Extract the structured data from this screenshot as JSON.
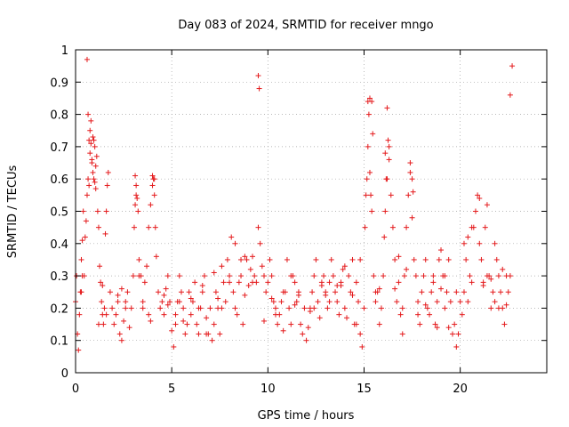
{
  "chart_data": {
    "type": "scatter",
    "title": "Day 083 of 2024, SRMTID for receiver mngo",
    "xlabel": "GPS time / hours",
    "ylabel": "SRMTID / TECUs",
    "xlim": [
      0,
      24.5
    ],
    "ylim": [
      0,
      1
    ],
    "xticks": [
      0,
      5,
      10,
      15,
      20
    ],
    "xtick_labels": [
      "0",
      "5",
      "10",
      "15",
      "20"
    ],
    "yticks": [
      0,
      0.1,
      0.2,
      0.3,
      0.4,
      0.5,
      0.6,
      0.7,
      0.8,
      0.9,
      1
    ],
    "ytick_labels": [
      "0",
      "0.1",
      "0.2",
      "0.3",
      "0.4",
      "0.5",
      "0.6",
      "0.7",
      "0.8",
      "0.9",
      "1"
    ],
    "grid": true,
    "marker": "+",
    "color": "#e41a1c",
    "series": [
      {
        "name": "SRMTID",
        "x": [
          0.0,
          0.05,
          0.1,
          0.15,
          0.2,
          0.25,
          0.3,
          0.35,
          0.4,
          0.45,
          0.5,
          0.55,
          0.6,
          0.65,
          0.7,
          0.75,
          0.8,
          0.85,
          0.9,
          0.95,
          1.0,
          1.05,
          1.1,
          1.15,
          1.2,
          1.25,
          1.3,
          1.35,
          1.4,
          1.45,
          1.5,
          1.55,
          1.6,
          1.65,
          1.7,
          1.8,
          1.9,
          2.0,
          2.1,
          2.2,
          2.3,
          2.4,
          2.5,
          2.6,
          2.7,
          2.8,
          2.9,
          3.0,
          3.05,
          3.1,
          3.15,
          3.2,
          3.25,
          3.3,
          3.4,
          3.5,
          3.6,
          3.7,
          3.8,
          3.9,
          4.0,
          4.05,
          4.1,
          4.15,
          4.2,
          4.3,
          4.4,
          4.5,
          4.6,
          4.7,
          4.8,
          4.9,
          5.0,
          5.1,
          5.2,
          5.3,
          5.4,
          5.5,
          5.6,
          5.7,
          5.8,
          5.9,
          6.0,
          6.1,
          6.2,
          6.3,
          6.4,
          6.5,
          6.6,
          6.7,
          6.8,
          6.9,
          7.0,
          7.1,
          7.2,
          7.3,
          7.4,
          7.5,
          7.6,
          7.7,
          7.8,
          7.9,
          8.0,
          8.1,
          8.2,
          8.3,
          8.4,
          8.5,
          8.6,
          8.7,
          8.8,
          8.9,
          9.0,
          9.1,
          9.2,
          9.3,
          9.4,
          9.5,
          9.6,
          9.7,
          9.8,
          9.9,
          10.0,
          10.1,
          10.2,
          10.3,
          10.4,
          10.5,
          10.6,
          10.7,
          10.8,
          10.9,
          11.0,
          11.1,
          11.2,
          11.3,
          11.4,
          11.5,
          11.6,
          11.7,
          11.8,
          11.9,
          12.0,
          12.1,
          12.2,
          12.3,
          12.4,
          12.5,
          12.6,
          12.7,
          12.8,
          12.9,
          13.0,
          13.1,
          13.2,
          13.3,
          13.4,
          13.5,
          13.6,
          13.7,
          13.8,
          13.9,
          14.0,
          14.1,
          14.2,
          14.3,
          14.4,
          14.5,
          14.6,
          14.7,
          14.8,
          14.9,
          15.0,
          15.05,
          15.1,
          15.15,
          15.2,
          15.3,
          15.4,
          15.5,
          15.6,
          15.7,
          15.8,
          15.9,
          16.0,
          16.05,
          16.1,
          16.15,
          16.2,
          16.3,
          16.4,
          16.5,
          16.6,
          16.7,
          16.8,
          16.9,
          17.0,
          17.1,
          17.2,
          17.3,
          17.4,
          17.5,
          17.6,
          17.7,
          17.8,
          17.9,
          18.0,
          18.1,
          18.2,
          18.3,
          18.4,
          18.5,
          18.6,
          18.7,
          18.8,
          18.9,
          19.0,
          19.1,
          19.2,
          19.3,
          19.4,
          19.5,
          19.6,
          19.7,
          19.8,
          19.9,
          20.0,
          20.1,
          20.2,
          20.3,
          20.4,
          20.5,
          20.6,
          20.7,
          20.8,
          20.9,
          21.0,
          21.1,
          21.2,
          21.3,
          21.4,
          21.5,
          21.6,
          21.7,
          21.8,
          21.9,
          22.0,
          22.1,
          22.2,
          22.3,
          22.4,
          22.5,
          22.6,
          22.7,
          0.6,
          0.65,
          0.7,
          0.75,
          0.8,
          0.85,
          0.9,
          0.95,
          1.0,
          1.05,
          3.1,
          3.15,
          4.0,
          4.1,
          9.5,
          9.55,
          15.2,
          15.25,
          15.3,
          15.35,
          15.4,
          15.45,
          16.1,
          16.2,
          16.25,
          16.3,
          17.4,
          17.5,
          17.55,
          21.0,
          21.2,
          22.0,
          0.3,
          0.35,
          1.4,
          1.6,
          2.4,
          2.6,
          3.3,
          3.5,
          3.9,
          4.6,
          5.4,
          5.6,
          6.4,
          6.6,
          7.4,
          7.6,
          8.0,
          8.3,
          8.6,
          9.2,
          10.4,
          10.8,
          11.2,
          11.6,
          12.4,
          12.8,
          13.2,
          13.6,
          14.0,
          14.4,
          14.8,
          15.6,
          16.6,
          17.0,
          17.8,
          18.2,
          18.6,
          19.0,
          19.4,
          19.8,
          20.2,
          20.6,
          21.4,
          21.8,
          22.2,
          22.6,
          1.2,
          2.2,
          3.8,
          4.8,
          5.2,
          6.0,
          6.8,
          7.2,
          8.8,
          9.8,
          10.2,
          11.4,
          12.2,
          13.0,
          13.8,
          14.6,
          15.8,
          16.8,
          17.2,
          18.8,
          19.2,
          20.4,
          21.6,
          22.4
        ],
        "y": [
          0.22,
          0.3,
          0.12,
          0.07,
          0.18,
          0.25,
          0.35,
          0.41,
          0.5,
          0.3,
          0.42,
          0.47,
          0.55,
          0.6,
          0.58,
          0.75,
          0.78,
          0.65,
          0.62,
          0.72,
          0.7,
          0.64,
          0.67,
          0.5,
          0.45,
          0.33,
          0.28,
          0.22,
          0.18,
          0.15,
          0.2,
          0.43,
          0.5,
          0.58,
          0.62,
          0.25,
          0.2,
          0.15,
          0.18,
          0.22,
          0.12,
          0.1,
          0.16,
          0.2,
          0.25,
          0.14,
          0.2,
          0.3,
          0.45,
          0.52,
          0.58,
          0.54,
          0.5,
          0.35,
          0.3,
          0.22,
          0.28,
          0.33,
          0.45,
          0.52,
          0.58,
          0.6,
          0.55,
          0.45,
          0.36,
          0.25,
          0.2,
          0.22,
          0.18,
          0.26,
          0.3,
          0.22,
          0.13,
          0.08,
          0.15,
          0.22,
          0.3,
          0.25,
          0.2,
          0.12,
          0.15,
          0.25,
          0.18,
          0.22,
          0.28,
          0.15,
          0.12,
          0.2,
          0.25,
          0.3,
          0.17,
          0.12,
          0.2,
          0.1,
          0.15,
          0.25,
          0.2,
          0.12,
          0.2,
          0.28,
          0.22,
          0.35,
          0.3,
          0.42,
          0.25,
          0.2,
          0.18,
          0.28,
          0.3,
          0.15,
          0.24,
          0.35,
          0.27,
          0.32,
          0.36,
          0.3,
          0.28,
          0.45,
          0.4,
          0.33,
          0.3,
          0.25,
          0.28,
          0.35,
          0.3,
          0.22,
          0.2,
          0.15,
          0.18,
          0.22,
          0.13,
          0.25,
          0.35,
          0.2,
          0.15,
          0.3,
          0.28,
          0.22,
          0.25,
          0.15,
          0.12,
          0.2,
          0.1,
          0.14,
          0.2,
          0.25,
          0.3,
          0.35,
          0.22,
          0.17,
          0.27,
          0.3,
          0.25,
          0.2,
          0.28,
          0.35,
          0.3,
          0.25,
          0.22,
          0.18,
          0.28,
          0.32,
          0.2,
          0.17,
          0.3,
          0.25,
          0.35,
          0.15,
          0.28,
          0.22,
          0.12,
          0.08,
          0.2,
          0.45,
          0.55,
          0.6,
          0.7,
          0.85,
          0.5,
          0.3,
          0.22,
          0.25,
          0.15,
          0.2,
          0.3,
          0.42,
          0.5,
          0.6,
          0.82,
          0.7,
          0.55,
          0.45,
          0.35,
          0.22,
          0.28,
          0.18,
          0.12,
          0.3,
          0.45,
          0.55,
          0.65,
          0.48,
          0.35,
          0.3,
          0.22,
          0.15,
          0.25,
          0.3,
          0.35,
          0.2,
          0.18,
          0.25,
          0.28,
          0.15,
          0.22,
          0.35,
          0.38,
          0.3,
          0.2,
          0.25,
          0.35,
          0.22,
          0.12,
          0.15,
          0.08,
          0.12,
          0.22,
          0.18,
          0.25,
          0.35,
          0.42,
          0.3,
          0.28,
          0.45,
          0.5,
          0.55,
          0.4,
          0.35,
          0.28,
          0.45,
          0.52,
          0.3,
          0.2,
          0.25,
          0.4,
          0.35,
          0.3,
          0.25,
          0.2,
          0.15,
          0.3,
          0.25,
          0.86,
          0.95,
          0.97,
          0.8,
          0.72,
          0.68,
          0.71,
          0.66,
          0.73,
          0.6,
          0.59,
          0.57,
          0.61,
          0.55,
          0.61,
          0.6,
          0.92,
          0.88,
          0.84,
          0.8,
          0.62,
          0.55,
          0.84,
          0.74,
          0.68,
          0.6,
          0.72,
          0.66,
          0.62,
          0.6,
          0.56,
          0.54,
          0.27,
          0.2,
          0.25,
          0.3,
          0.27,
          0.18,
          0.26,
          0.22,
          0.3,
          0.2,
          0.16,
          0.24,
          0.22,
          0.16,
          0.2,
          0.27,
          0.23,
          0.33,
          0.28,
          0.4,
          0.35,
          0.28,
          0.18,
          0.25,
          0.3,
          0.24,
          0.2,
          0.28,
          0.22,
          0.27,
          0.33,
          0.24,
          0.35,
          0.25,
          0.26,
          0.2,
          0.18,
          0.21,
          0.3,
          0.26,
          0.14,
          0.25,
          0.4,
          0.45,
          0.3,
          0.22,
          0.32,
          0.3,
          0.15,
          0.24,
          0.18,
          0.21,
          0.18,
          0.23,
          0.12,
          0.31,
          0.36,
          0.16,
          0.23,
          0.21,
          0.19,
          0.24,
          0.27,
          0.15,
          0.26,
          0.36,
          0.32,
          0.14,
          0.3,
          0.22,
          0.29,
          0.21
        ]
      }
    ]
  }
}
